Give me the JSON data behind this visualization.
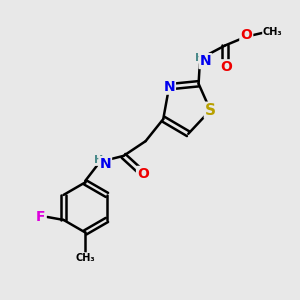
{
  "background_color": "#e8e8e8",
  "bond_color": "#000000",
  "bond_width": 1.8,
  "atom_colors": {
    "N": "#0000ee",
    "O": "#ee0000",
    "S": "#b8a000",
    "F": "#dd00dd",
    "H": "#4a8a8a",
    "C": "#000000"
  },
  "font_size_atom": 10,
  "font_size_small": 8,
  "figsize": [
    3.0,
    3.0
  ],
  "dpi": 100
}
